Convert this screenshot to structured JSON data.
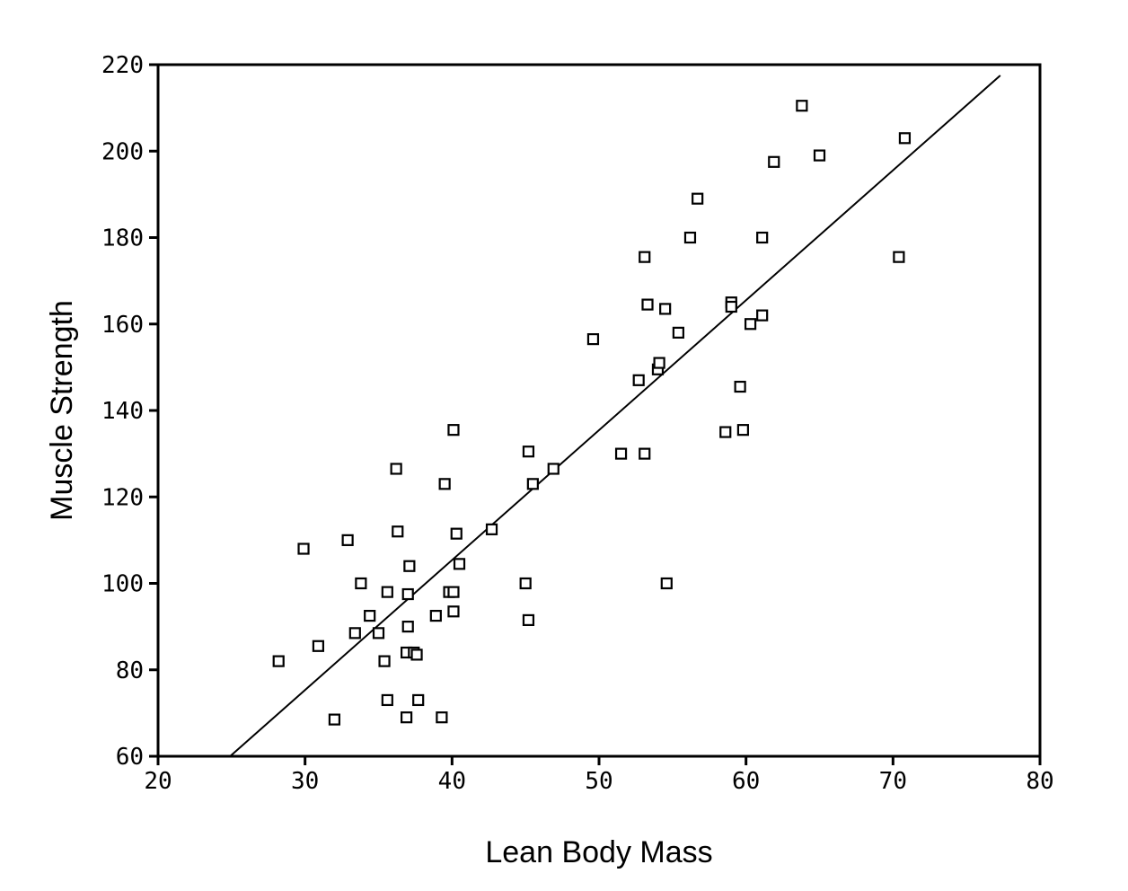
{
  "chart_data": {
    "type": "scatter",
    "title": "",
    "xlabel": "Lean Body Mass",
    "ylabel": "Muscle Strength",
    "xlim": [
      20,
      80
    ],
    "ylim": [
      60,
      220
    ],
    "xticks": [
      "20",
      "30",
      "40",
      "50",
      "60",
      "70",
      "80"
    ],
    "yticks": [
      "60",
      "80",
      "100",
      "120",
      "140",
      "160",
      "180",
      "200",
      "220"
    ],
    "grid": false,
    "legend": "none",
    "marker": "hollow-square",
    "colors": {
      "marker": "#000000",
      "line": "#000000",
      "axis": "#000000"
    },
    "points": [
      [
        28.2,
        82
      ],
      [
        29.9,
        108
      ],
      [
        30.9,
        85.5
      ],
      [
        32.0,
        68.5
      ],
      [
        32.9,
        110
      ],
      [
        33.4,
        88.5
      ],
      [
        33.8,
        100
      ],
      [
        34.4,
        92.5
      ],
      [
        35.0,
        88.5
      ],
      [
        35.4,
        82
      ],
      [
        35.6,
        73
      ],
      [
        35.6,
        98
      ],
      [
        36.2,
        126.5
      ],
      [
        36.3,
        112
      ],
      [
        36.9,
        84
      ],
      [
        36.9,
        69
      ],
      [
        37.0,
        90
      ],
      [
        37.0,
        97.5
      ],
      [
        37.1,
        104
      ],
      [
        37.4,
        84
      ],
      [
        37.6,
        83.5
      ],
      [
        37.7,
        73
      ],
      [
        38.9,
        92.5
      ],
      [
        39.3,
        69
      ],
      [
        39.5,
        123
      ],
      [
        39.8,
        98
      ],
      [
        40.1,
        98
      ],
      [
        40.1,
        93.5
      ],
      [
        40.1,
        135.5
      ],
      [
        40.3,
        111.5
      ],
      [
        40.5,
        104.5
      ],
      [
        42.7,
        112.5
      ],
      [
        45.0,
        100
      ],
      [
        45.2,
        91.5
      ],
      [
        45.2,
        130.5
      ],
      [
        45.5,
        123
      ],
      [
        46.9,
        126.5
      ],
      [
        49.6,
        156.5
      ],
      [
        51.5,
        130
      ],
      [
        52.7,
        147
      ],
      [
        53.1,
        130
      ],
      [
        53.1,
        175.5
      ],
      [
        53.3,
        164.5
      ],
      [
        54.0,
        149.5
      ],
      [
        54.1,
        151
      ],
      [
        54.5,
        163.5
      ],
      [
        54.6,
        100
      ],
      [
        55.4,
        158
      ],
      [
        56.2,
        180
      ],
      [
        56.7,
        189
      ],
      [
        58.6,
        135
      ],
      [
        59.0,
        165
      ],
      [
        59.0,
        164
      ],
      [
        59.6,
        145.5
      ],
      [
        59.8,
        135.5
      ],
      [
        60.3,
        160
      ],
      [
        61.1,
        162
      ],
      [
        61.1,
        180
      ],
      [
        61.9,
        197.5
      ],
      [
        63.8,
        210.5
      ],
      [
        65.0,
        199
      ],
      [
        70.4,
        175.5
      ],
      [
        70.8,
        203
      ]
    ],
    "fit_line": {
      "x": [
        24.9,
        77.3
      ],
      "y": [
        60,
        217.5
      ]
    }
  }
}
